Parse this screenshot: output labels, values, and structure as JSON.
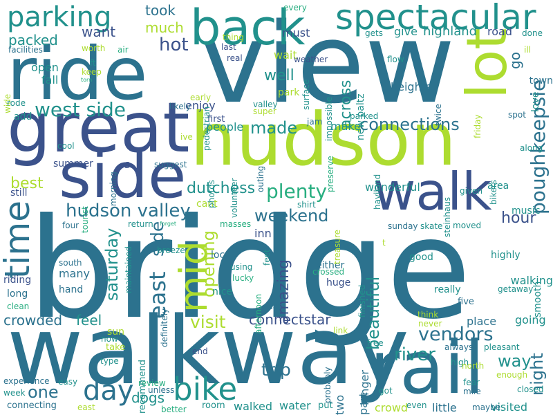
{
  "background": "#ffffff",
  "palette": {
    "viridis_dark": "#3b528b",
    "viridis_blue": "#2c728e",
    "viridis_teal": "#21918c",
    "viridis_green": "#28ae80",
    "viridis_lime": "#5ec962",
    "viridis_yellow": "#addc30"
  },
  "words": [
    {
      "text": "bridge"
    },
    {
      "text": "view"
    },
    {
      "text": "walkway"
    },
    {
      "text": "hudson"
    },
    {
      "text": "ride"
    },
    {
      "text": "great"
    },
    {
      "text": "rail"
    },
    {
      "text": "side"
    },
    {
      "text": "back"
    },
    {
      "text": "walk"
    },
    {
      "text": "spectacular"
    },
    {
      "text": "lot"
    },
    {
      "text": "parking"
    },
    {
      "text": "time"
    },
    {
      "text": "day"
    },
    {
      "text": "bike"
    },
    {
      "text": "hudson valley"
    },
    {
      "text": "mid"
    },
    {
      "text": "west side"
    },
    {
      "text": "plenty"
    },
    {
      "text": "weekend"
    },
    {
      "text": "connections"
    },
    {
      "text": "vendors"
    },
    {
      "text": "river"
    },
    {
      "text": "poughkeepsie"
    },
    {
      "text": "east"
    },
    {
      "text": "connectstar"
    },
    {
      "text": "made"
    },
    {
      "text": "saturday"
    },
    {
      "text": "amazing"
    },
    {
      "text": "dutchess"
    },
    {
      "text": "side"
    },
    {
      "text": "hot"
    },
    {
      "text": "visit"
    },
    {
      "text": "trip"
    },
    {
      "text": "crowded"
    },
    {
      "text": "feel"
    },
    {
      "text": "beautiful"
    },
    {
      "text": "way"
    },
    {
      "text": "one"
    },
    {
      "text": "opening"
    },
    {
      "text": "night"
    },
    {
      "text": "hour"
    },
    {
      "text": "across"
    },
    {
      "text": "well"
    },
    {
      "text": "packed"
    },
    {
      "text": "took"
    },
    {
      "text": "much"
    },
    {
      "text": "want"
    },
    {
      "text": "best"
    },
    {
      "text": "dogs"
    },
    {
      "text": "highland"
    },
    {
      "text": "go"
    },
    {
      "text": "s"
    },
    {
      "text": "heights"
    },
    {
      "text": "inn"
    },
    {
      "text": "fall"
    },
    {
      "text": "open"
    },
    {
      "text": "give"
    },
    {
      "text": "road"
    },
    {
      "text": "people"
    },
    {
      "text": "make"
    },
    {
      "text": "wonderful"
    },
    {
      "text": "walked"
    },
    {
      "text": "water"
    },
    {
      "text": "crowd"
    },
    {
      "text": "little"
    },
    {
      "text": "visited"
    },
    {
      "text": "walking"
    },
    {
      "text": "place"
    },
    {
      "text": "going"
    },
    {
      "text": "part"
    },
    {
      "text": "longer"
    },
    {
      "text": "two"
    },
    {
      "text": "must"
    },
    {
      "text": "wait"
    },
    {
      "text": "park"
    },
    {
      "text": "new paltz"
    },
    {
      "text": "add"
    },
    {
      "text": "riding"
    },
    {
      "text": "long"
    },
    {
      "text": "many"
    },
    {
      "text": "hand"
    },
    {
      "text": "huge"
    },
    {
      "text": "either"
    },
    {
      "text": "nice"
    },
    {
      "text": "local"
    },
    {
      "text": "enjoy"
    },
    {
      "text": "love"
    },
    {
      "text": "area"
    },
    {
      "text": "music"
    },
    {
      "text": "smooth"
    },
    {
      "text": "town"
    },
    {
      "text": "still"
    },
    {
      "text": "summer"
    },
    {
      "text": "cool"
    },
    {
      "text": "suggest"
    },
    {
      "text": "masses"
    },
    {
      "text": "return"
    },
    {
      "text": "four"
    },
    {
      "text": "cant"
    },
    {
      "text": "shirt"
    },
    {
      "text": "sunday"
    },
    {
      "text": "skate"
    },
    {
      "text": "moved"
    },
    {
      "text": "good"
    },
    {
      "text": "highly"
    },
    {
      "text": "getaway"
    },
    {
      "text": "five"
    },
    {
      "text": "really"
    },
    {
      "text": "think"
    },
    {
      "text": "never"
    },
    {
      "text": "always"
    },
    {
      "text": "pleasant"
    },
    {
      "text": "high"
    },
    {
      "text": "free"
    },
    {
      "text": "north"
    },
    {
      "text": "enough"
    },
    {
      "text": "fear"
    },
    {
      "text": "mile"
    },
    {
      "text": "closed"
    },
    {
      "text": "maybe"
    },
    {
      "text": "even"
    },
    {
      "text": "got"
    },
    {
      "text": "put"
    },
    {
      "text": "room"
    },
    {
      "text": "better"
    },
    {
      "text": "east"
    },
    {
      "text": "week"
    },
    {
      "text": "experience"
    },
    {
      "text": "connecting"
    },
    {
      "text": "easy"
    },
    {
      "text": "review"
    },
    {
      "text": "unless"
    },
    {
      "text": "end"
    },
    {
      "text": "recommend"
    },
    {
      "text": "sun"
    },
    {
      "text": "take"
    },
    {
      "text": "type"
    },
    {
      "text": "now"
    },
    {
      "text": "clean"
    },
    {
      "text": "south"
    },
    {
      "text": "maintained"
    },
    {
      "text": "definitely"
    },
    {
      "text": "breeze"
    },
    {
      "text": "feet"
    },
    {
      "text": "using"
    },
    {
      "text": "lucky"
    },
    {
      "text": "afternoon"
    },
    {
      "text": "hat"
    },
    {
      "text": "crossed"
    },
    {
      "text": "finished"
    },
    {
      "text": "t"
    },
    {
      "text": "link"
    },
    {
      "text": "probably"
    },
    {
      "text": "tourist"
    },
    {
      "text": "morning"
    },
    {
      "text": "photos"
    },
    {
      "text": "volunteer"
    },
    {
      "text": "outing"
    },
    {
      "text": "preserve"
    },
    {
      "text": "treasure"
    },
    {
      "text": "steinhaus"
    },
    {
      "text": "given"
    },
    {
      "text": "haviland"
    },
    {
      "text": "bikers"
    },
    {
      "text": "along"
    },
    {
      "text": "spot"
    },
    {
      "text": "friday"
    },
    {
      "text": "twice"
    },
    {
      "text": "parked"
    },
    {
      "text": "jam"
    },
    {
      "text": "super"
    },
    {
      "text": "valley"
    },
    {
      "text": "first"
    },
    {
      "text": "ive"
    },
    {
      "text": "likely"
    },
    {
      "text": "early"
    },
    {
      "text": "pedestrian"
    },
    {
      "text": "real"
    },
    {
      "text": "last"
    },
    {
      "text": "thing"
    },
    {
      "text": "every"
    },
    {
      "text": "surface"
    },
    {
      "text": "impossible"
    },
    {
      "text": "weather"
    },
    {
      "text": "flow"
    },
    {
      "text": "gets"
    },
    {
      "text": "done"
    },
    {
      "text": "ill"
    },
    {
      "text": "worth"
    },
    {
      "text": "air"
    },
    {
      "text": "ft"
    },
    {
      "text": "keep"
    },
    {
      "text": "torn"
    },
    {
      "text": "facilities"
    },
    {
      "text": "wide"
    },
    {
      "text": "rode"
    },
    {
      "text": "forget"
    }
  ]
}
